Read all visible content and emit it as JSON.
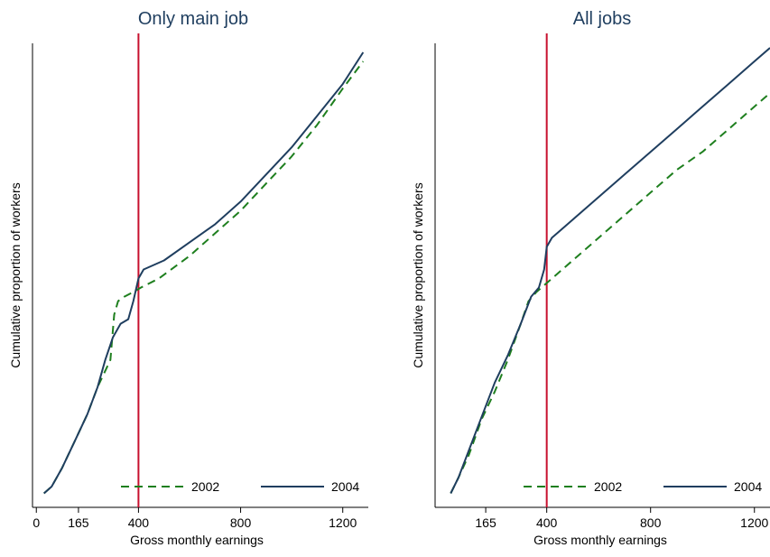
{
  "chart_data": [
    {
      "type": "line",
      "title": "Only main job",
      "xlabel": "Gross monthly earnings",
      "ylabel": "Cumulative proportion of workers",
      "xticks": [
        0,
        165,
        400,
        800,
        1200
      ],
      "xlim": [
        -15,
        1300
      ],
      "ylim": [
        0,
        1
      ],
      "grid": false,
      "legend": "bottom-right",
      "vline": {
        "x": 400,
        "color": "#c8102e"
      },
      "series": [
        {
          "name": "2002",
          "color": "#1e7f1e",
          "dash": true,
          "points": [
            [
              30,
              0.005
            ],
            [
              60,
              0.02
            ],
            [
              100,
              0.06
            ],
            [
              150,
              0.12
            ],
            [
              200,
              0.18
            ],
            [
              240,
              0.24
            ],
            [
              290,
              0.3
            ],
            [
              305,
              0.4
            ],
            [
              320,
              0.43
            ],
            [
              345,
              0.44
            ],
            [
              380,
              0.45
            ],
            [
              410,
              0.46
            ],
            [
              480,
              0.48
            ],
            [
              600,
              0.53
            ],
            [
              700,
              0.58
            ],
            [
              800,
              0.63
            ],
            [
              900,
              0.69
            ],
            [
              1000,
              0.75
            ],
            [
              1100,
              0.82
            ],
            [
              1200,
              0.9
            ],
            [
              1280,
              0.96
            ]
          ]
        },
        {
          "name": "2004",
          "color": "#1f3e5f",
          "dash": false,
          "points": [
            [
              30,
              0.005
            ],
            [
              60,
              0.02
            ],
            [
              100,
              0.06
            ],
            [
              150,
              0.12
            ],
            [
              200,
              0.18
            ],
            [
              240,
              0.24
            ],
            [
              270,
              0.3
            ],
            [
              300,
              0.35
            ],
            [
              330,
              0.38
            ],
            [
              360,
              0.39
            ],
            [
              380,
              0.43
            ],
            [
              400,
              0.48
            ],
            [
              420,
              0.5
            ],
            [
              500,
              0.52
            ],
            [
              600,
              0.56
            ],
            [
              700,
              0.6
            ],
            [
              800,
              0.65
            ],
            [
              900,
              0.71
            ],
            [
              1000,
              0.77
            ],
            [
              1100,
              0.84
            ],
            [
              1200,
              0.91
            ],
            [
              1280,
              0.98
            ]
          ]
        }
      ]
    },
    {
      "type": "line",
      "title": "All jobs",
      "xlabel": "Gross monthly earnings",
      "ylabel": "Cumulative proportion of workers",
      "xticks": [
        165,
        400,
        800,
        1200
      ],
      "xlim": [
        -30,
        1260
      ],
      "ylim": [
        0,
        1
      ],
      "grid": false,
      "legend": "bottom-right",
      "vline": {
        "x": 400,
        "color": "#c8102e"
      },
      "series": [
        {
          "name": "2002",
          "color": "#1e7f1e",
          "dash": true,
          "points": [
            [
              30,
              0.005
            ],
            [
              60,
              0.04
            ],
            [
              100,
              0.09
            ],
            [
              150,
              0.17
            ],
            [
              200,
              0.23
            ],
            [
              250,
              0.3
            ],
            [
              300,
              0.38
            ],
            [
              330,
              0.43
            ],
            [
              360,
              0.45
            ],
            [
              400,
              0.47
            ],
            [
              500,
              0.52
            ],
            [
              600,
              0.57
            ],
            [
              700,
              0.62
            ],
            [
              800,
              0.67
            ],
            [
              900,
              0.72
            ],
            [
              1000,
              0.76
            ],
            [
              1100,
              0.81
            ],
            [
              1200,
              0.86
            ],
            [
              1260,
              0.89
            ]
          ]
        },
        {
          "name": "2004",
          "color": "#1f3e5f",
          "dash": false,
          "points": [
            [
              30,
              0.005
            ],
            [
              60,
              0.04
            ],
            [
              100,
              0.1
            ],
            [
              160,
              0.19
            ],
            [
              200,
              0.25
            ],
            [
              250,
              0.31
            ],
            [
              300,
              0.38
            ],
            [
              340,
              0.44
            ],
            [
              370,
              0.46
            ],
            [
              390,
              0.5
            ],
            [
              400,
              0.55
            ],
            [
              420,
              0.57
            ],
            [
              500,
              0.61
            ],
            [
              600,
              0.66
            ],
            [
              700,
              0.71
            ],
            [
              800,
              0.76
            ],
            [
              900,
              0.81
            ],
            [
              1000,
              0.86
            ],
            [
              1100,
              0.91
            ],
            [
              1200,
              0.96
            ],
            [
              1260,
              0.99
            ]
          ]
        }
      ]
    }
  ]
}
